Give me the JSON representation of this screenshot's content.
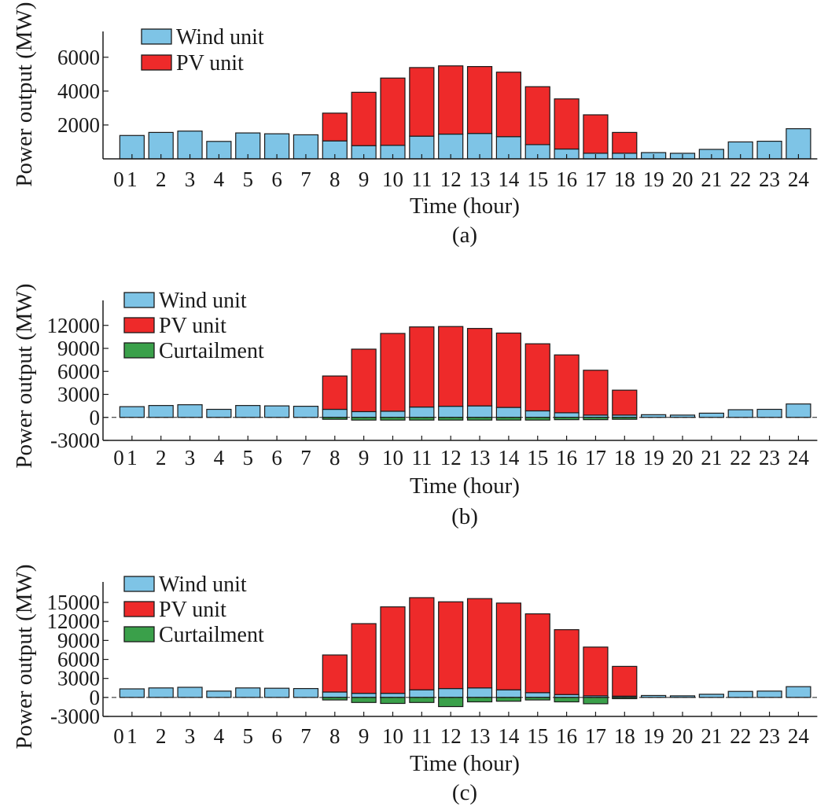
{
  "chart_data": [
    {
      "type": "bar",
      "panel_label": "(a)",
      "xlabel": "Time (hour)",
      "ylabel": "Power output (MW)",
      "x_ticks": [
        "0",
        "1",
        "2",
        "3",
        "4",
        "5",
        "6",
        "7",
        "8",
        "9",
        "10",
        "11",
        "12",
        "13",
        "14",
        "15",
        "16",
        "17",
        "18",
        "19",
        "20",
        "21",
        "22",
        "23",
        "24"
      ],
      "categories": [
        "1",
        "2",
        "3",
        "4",
        "5",
        "6",
        "7",
        "8",
        "9",
        "10",
        "11",
        "12",
        "13",
        "14",
        "15",
        "16",
        "17",
        "18",
        "19",
        "20",
        "21",
        "22",
        "23",
        "24"
      ],
      "y_ticks": [
        "6000",
        "4000",
        "2000"
      ],
      "ylim": [
        0,
        6500
      ],
      "stacked": true,
      "legend_position": "top-left",
      "series": [
        {
          "name": "Wind unit",
          "color": "#7ec4e6",
          "values": [
            1380,
            1560,
            1640,
            1030,
            1530,
            1480,
            1420,
            1060,
            780,
            800,
            1340,
            1460,
            1500,
            1310,
            840,
            580,
            330,
            330,
            370,
            330,
            560,
            1000,
            1040,
            1780
          ]
        },
        {
          "name": "PV unit",
          "color": "#ee2a2a",
          "values": [
            0,
            0,
            0,
            0,
            0,
            0,
            0,
            1640,
            3150,
            3970,
            4050,
            4030,
            3950,
            3810,
            3420,
            2960,
            2270,
            1230,
            0,
            0,
            0,
            0,
            0,
            0
          ]
        }
      ]
    },
    {
      "type": "bar",
      "panel_label": "(b)",
      "xlabel": "Time (hour)",
      "ylabel": "Power output (MW)",
      "x_ticks": [
        "0",
        "1",
        "2",
        "3",
        "4",
        "5",
        "6",
        "7",
        "8",
        "9",
        "10",
        "11",
        "12",
        "13",
        "14",
        "15",
        "16",
        "17",
        "18",
        "19",
        "20",
        "21",
        "22",
        "23",
        "24"
      ],
      "categories": [
        "1",
        "2",
        "3",
        "4",
        "5",
        "6",
        "7",
        "8",
        "9",
        "10",
        "11",
        "12",
        "13",
        "14",
        "15",
        "16",
        "17",
        "18",
        "19",
        "20",
        "21",
        "22",
        "23",
        "24"
      ],
      "y_ticks": [
        "12000",
        "9000",
        "6000",
        "3000",
        "0",
        "-3000"
      ],
      "ylim": [
        -3000,
        13000
      ],
      "stacked": true,
      "legend_position": "top-left",
      "series": [
        {
          "name": "Wind unit",
          "color": "#7ec4e6",
          "values": [
            1400,
            1550,
            1650,
            1050,
            1550,
            1500,
            1450,
            1050,
            750,
            800,
            1350,
            1450,
            1500,
            1300,
            850,
            600,
            300,
            300,
            350,
            300,
            550,
            1000,
            1050,
            1750
          ]
        },
        {
          "name": "PV unit",
          "color": "#ee2a2a",
          "values": [
            0,
            0,
            0,
            0,
            0,
            0,
            0,
            4350,
            8150,
            10150,
            10450,
            10400,
            10100,
            9700,
            8750,
            7550,
            5850,
            3250,
            0,
            0,
            0,
            0,
            0,
            0
          ]
        },
        {
          "name": "Curtailment",
          "color": "#3aa04a",
          "values": [
            0,
            0,
            0,
            0,
            0,
            0,
            0,
            -250,
            -350,
            -350,
            -350,
            -350,
            -350,
            -350,
            -350,
            -300,
            -300,
            -250,
            0,
            0,
            0,
            0,
            0,
            0
          ]
        }
      ]
    },
    {
      "type": "bar",
      "panel_label": "(c)",
      "xlabel": "Time (hour)",
      "ylabel": "Power output (MW)",
      "x_ticks": [
        "0",
        "1",
        "2",
        "3",
        "4",
        "5",
        "6",
        "7",
        "8",
        "9",
        "10",
        "11",
        "12",
        "13",
        "14",
        "15",
        "16",
        "17",
        "18",
        "19",
        "20",
        "21",
        "22",
        "23",
        "24"
      ],
      "categories": [
        "1",
        "2",
        "3",
        "4",
        "5",
        "6",
        "7",
        "8",
        "9",
        "10",
        "11",
        "12",
        "13",
        "14",
        "15",
        "16",
        "17",
        "18",
        "19",
        "20",
        "21",
        "22",
        "23",
        "24"
      ],
      "y_ticks": [
        "15000",
        "12000",
        "9000",
        "6000",
        "3000",
        "0",
        "-3000"
      ],
      "ylim": [
        -3000,
        16000
      ],
      "stacked": true,
      "legend_position": "top-left",
      "series": [
        {
          "name": "Wind unit",
          "color": "#7ec4e6",
          "values": [
            1350,
            1500,
            1600,
            1000,
            1500,
            1450,
            1400,
            850,
            650,
            650,
            1200,
            1400,
            1500,
            1200,
            750,
            450,
            250,
            200,
            300,
            250,
            500,
            950,
            1000,
            1700
          ]
        },
        {
          "name": "PV unit",
          "color": "#ee2a2a",
          "values": [
            0,
            0,
            0,
            0,
            0,
            0,
            0,
            5850,
            11000,
            13650,
            14550,
            13700,
            14100,
            13700,
            12450,
            10250,
            7700,
            4700,
            0,
            0,
            0,
            0,
            0,
            0
          ]
        },
        {
          "name": "Curtailment",
          "color": "#3aa04a",
          "values": [
            0,
            0,
            0,
            0,
            0,
            0,
            0,
            -400,
            -800,
            -950,
            -800,
            -1450,
            -700,
            -600,
            -400,
            -700,
            -1000,
            -200,
            0,
            0,
            0,
            0,
            0,
            0
          ]
        }
      ]
    }
  ]
}
